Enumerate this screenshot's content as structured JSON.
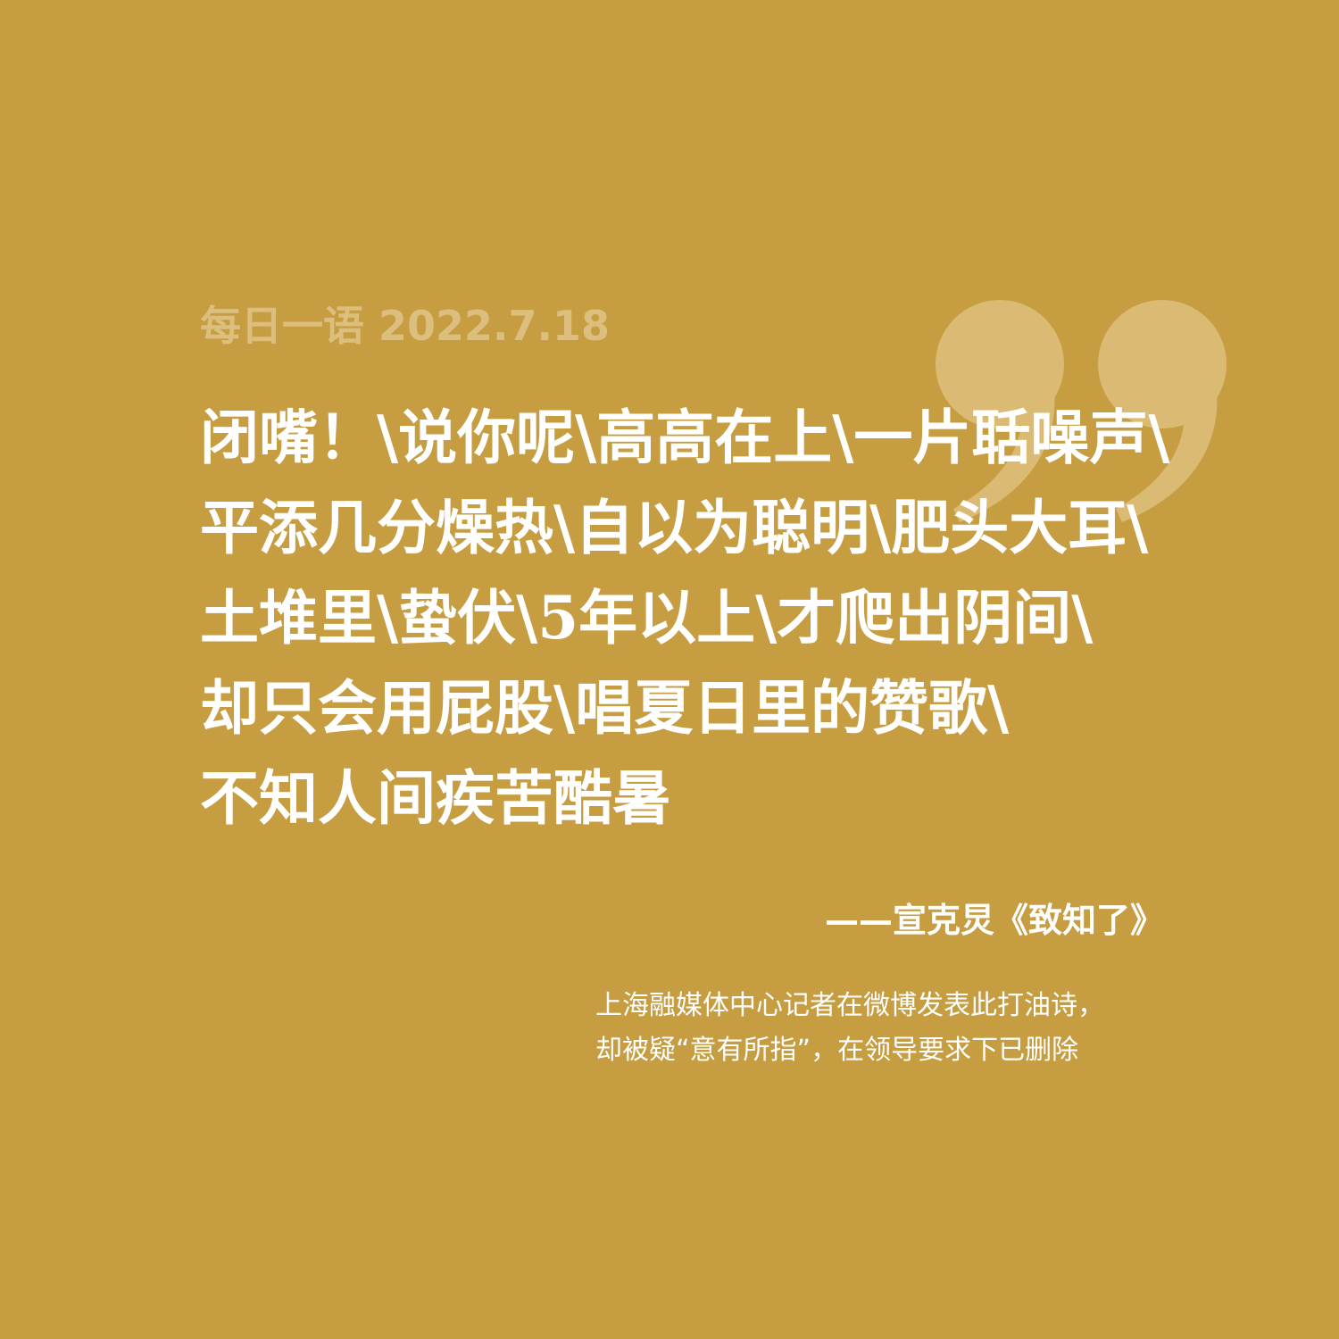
{
  "header": {
    "date_label": "每日一语 2022.7.18"
  },
  "poem": {
    "lines": [
      "闭嘴！\\说你呢\\高高在上\\一片聒噪声\\",
      "平添几分燥热\\自以为聪明\\肥头大耳\\",
      "土堆里\\蛰伏\\5年以上\\才爬出阴间\\",
      "却只会用屁股\\唱夏日里的赞歌\\",
      "不知人间疾苦酷暑"
    ]
  },
  "attribution": "——宣克炅《致知了》",
  "note": {
    "lines": [
      "上海融媒体中心记者在微博发表此打油诗，",
      "却被疑“意有所指”，在领导要求下已删除"
    ]
  },
  "decor": {
    "quote_icon": "closing-quote-icon",
    "background_color": "#c69d41",
    "quote_color": "#dbbb74",
    "date_color": "#dcbf7f",
    "text_color": "#ffffff"
  }
}
